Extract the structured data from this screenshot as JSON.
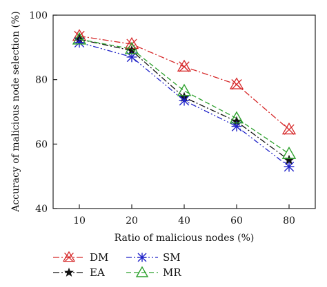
{
  "chart_data": {
    "type": "line",
    "title": "",
    "xlabel": "Ratio of malicious nodes (%)",
    "ylabel": "Accuracy of malicious node selection (%)",
    "categories": [
      "10",
      "20",
      "40",
      "60",
      "80"
    ],
    "ylim": [
      40,
      100
    ],
    "yticks": [
      "40",
      "60",
      "80",
      "100"
    ],
    "grid": false,
    "legend_position": "bottom",
    "series": [
      {
        "name": "DM",
        "values": [
          93.5,
          91.0,
          84.0,
          78.5,
          64.5
        ],
        "color": "#d62728",
        "marker": "x-triangle",
        "dash": "dash-dot"
      },
      {
        "name": "EA",
        "values": [
          92.5,
          89.0,
          74.5,
          67.0,
          55.0
        ],
        "color": "#111111",
        "marker": "star",
        "dash": "dash-dot"
      },
      {
        "name": "SM",
        "values": [
          91.5,
          87.0,
          73.5,
          65.5,
          53.0
        ],
        "color": "#1f22c8",
        "marker": "asterisk",
        "dash": "dash-dot-dot"
      },
      {
        "name": "MR",
        "values": [
          92.5,
          89.5,
          76.5,
          68.0,
          57.0
        ],
        "color": "#2ca02c",
        "marker": "triangle",
        "dash": "dashed"
      }
    ]
  }
}
